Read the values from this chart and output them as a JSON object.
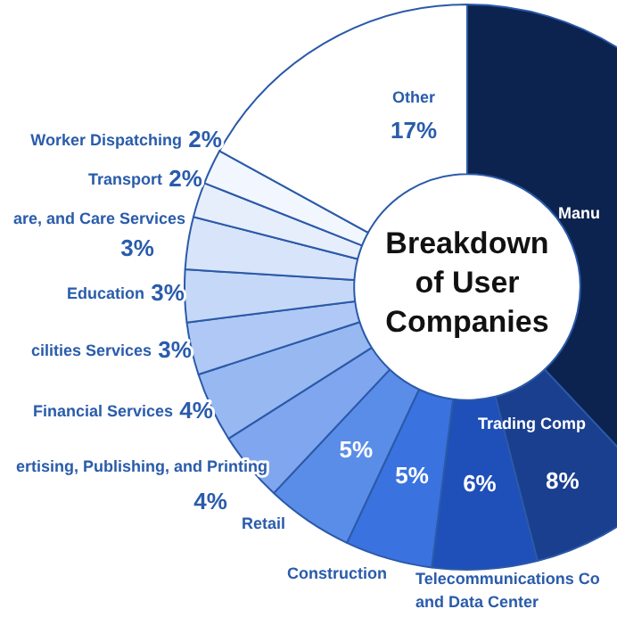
{
  "chart_data": {
    "type": "donut",
    "title": "Breakdown of User Companies",
    "categories": [
      "Manu",
      "Trading Comp",
      "Telecommunications Co\nand Data Center",
      "Construction",
      "Retail",
      "ertising, Publishing, and Printing",
      "Financial Services",
      "cilities Services",
      "Education",
      "are, and Care Services",
      "Transport",
      "Worker Dispatching",
      "Other"
    ],
    "values": [
      38,
      8,
      6,
      5,
      5,
      4,
      4,
      3,
      3,
      3,
      2,
      2,
      17
    ],
    "value_labels": [
      null,
      "8%",
      "6%",
      "5%",
      "5%",
      "4%",
      "4%",
      "3%",
      "3%",
      "3%",
      "2%",
      "2%",
      "17%"
    ],
    "colors": [
      "#0c2350",
      "#1a3f8f",
      "#1f4fb8",
      "#3a72e0",
      "#5a8de8",
      "#7fa6ee",
      "#98b8f2",
      "#b0c8f5",
      "#c6d8f8",
      "#d8e4fa",
      "#e6eefc",
      "#f2f6fe",
      "#ffffff"
    ],
    "legend": false
  }
}
